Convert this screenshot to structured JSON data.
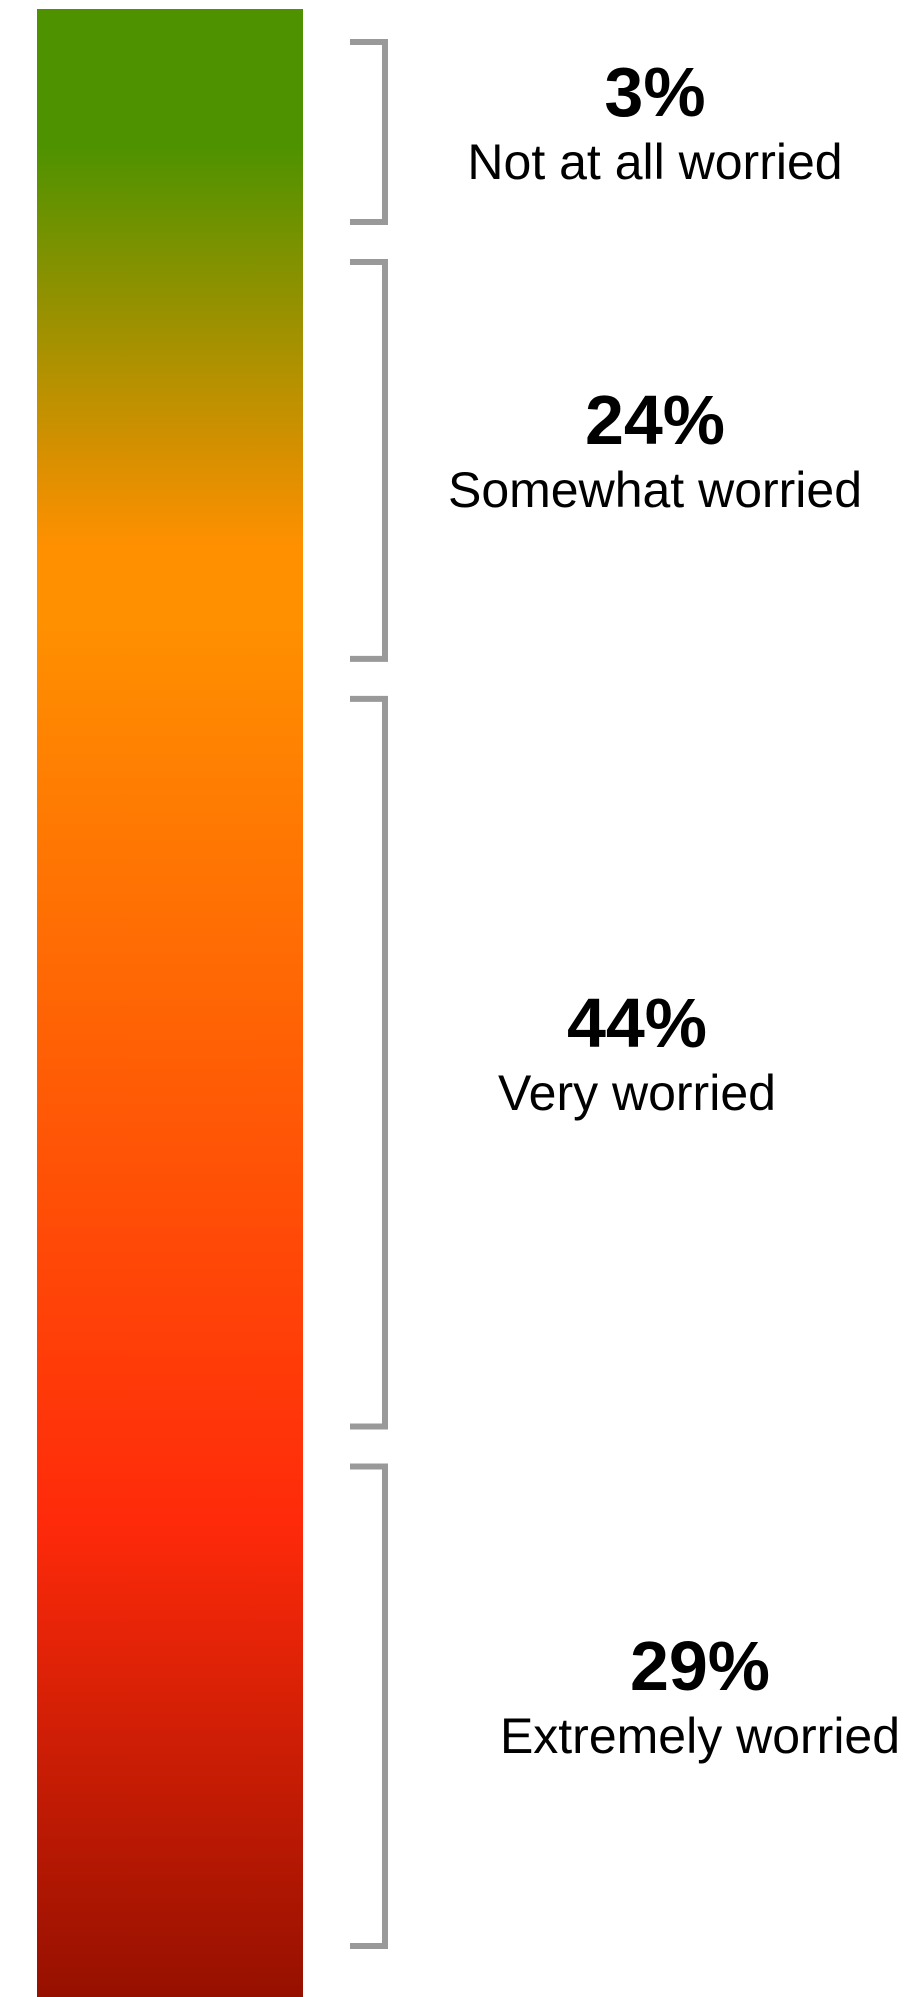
{
  "chart_data": {
    "type": "bar",
    "categories": [
      "Not at all worried",
      "Somewhat worried",
      "Very worried",
      "Extremely worried"
    ],
    "values": [
      3,
      24,
      44,
      29
    ],
    "value_labels": [
      "3%",
      "24%",
      "44%",
      "29%"
    ],
    "title": "",
    "xlabel": "",
    "ylabel": "",
    "unit": "%",
    "grid": false,
    "legend": "none",
    "colors": {
      "gradient_top": "#4f9200",
      "gradient_mid": "#ff9000",
      "gradient_red": "#ff2a0a",
      "gradient_bottom": "#961000",
      "bracket": "#999999",
      "text": "#000000"
    }
  }
}
